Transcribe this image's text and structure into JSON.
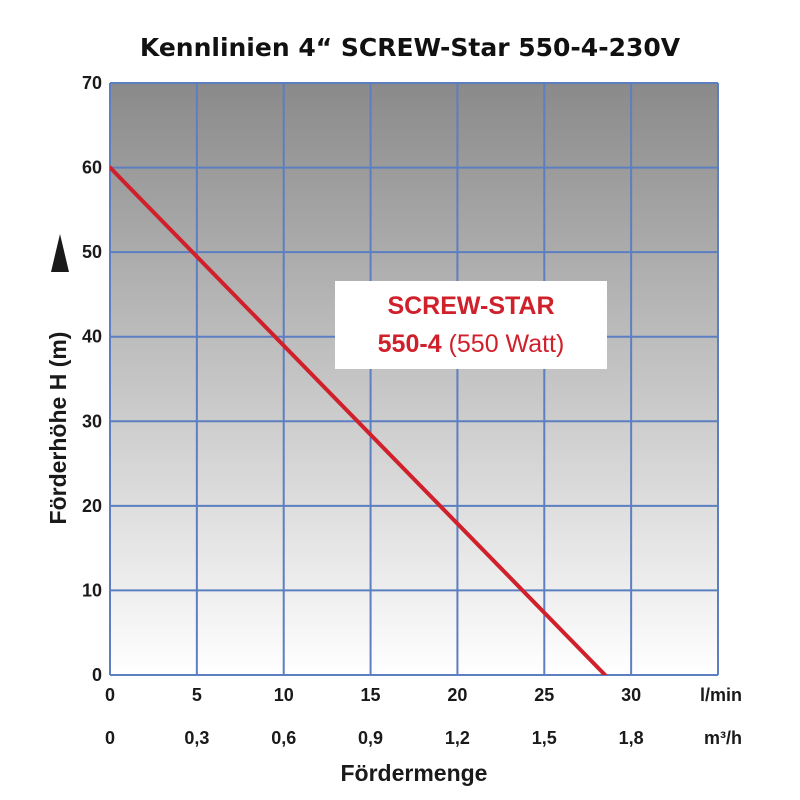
{
  "chart_data": {
    "type": "line",
    "title": "Kennlinien 4“ SCREW-Star 550-4-230V",
    "xlabel": "Fördermenge",
    "ylabel": "Förderhöhe H (m)",
    "xlim": [
      0,
      35
    ],
    "ylim": [
      0,
      70
    ],
    "x_ticks": [
      0,
      5,
      10,
      15,
      20,
      25,
      30
    ],
    "x_tick_labels": [
      "0",
      "5",
      "10",
      "15",
      "20",
      "25",
      "30"
    ],
    "x_unit": "l/min",
    "x2_tick_labels": [
      "0",
      "0,3",
      "0,6",
      "0,9",
      "1,2",
      "1,5",
      "1,8"
    ],
    "x2_unit": "m³/h",
    "y_ticks": [
      0,
      10,
      20,
      30,
      40,
      50,
      60,
      70
    ],
    "y_tick_labels": [
      "0",
      "10",
      "20",
      "30",
      "40",
      "50",
      "60",
      "70"
    ],
    "grid": true,
    "series": [
      {
        "name": "SCREW-STAR 550-4",
        "color": "#d0202b",
        "x": [
          0,
          28.5
        ],
        "y": [
          60,
          0
        ]
      }
    ],
    "legend": {
      "placement": "center-right",
      "line1": "SCREW-STAR",
      "line2_bold": "550-4",
      "line2_normal": " (550 Watt)"
    },
    "colors": {
      "grid": "#5b7fc0",
      "background_top": "#8a8a8a",
      "background_bottom": "#ffffff",
      "line": "#d0202b"
    }
  }
}
